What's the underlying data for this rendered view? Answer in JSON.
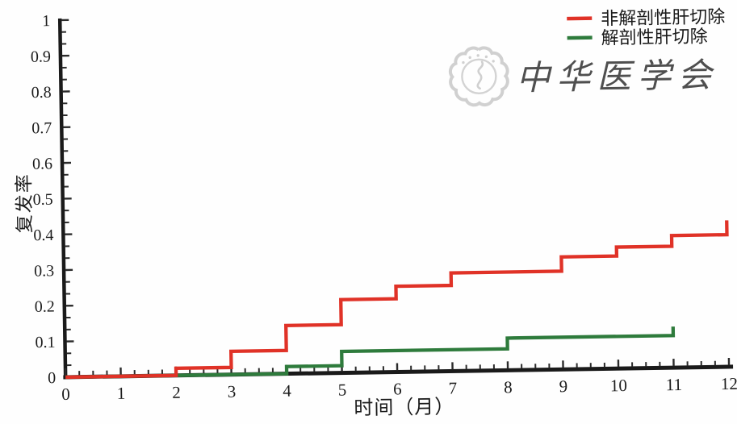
{
  "figure": {
    "background": "#fefefe",
    "axis_color": "#1a1a1a",
    "tick_color": "#2b2b2b"
  },
  "watermark": {
    "text": "中华医学会",
    "color": "#c6c6c6",
    "emblem": "cma-seal"
  },
  "chart_data": {
    "type": "line",
    "subtype": "step",
    "title": "",
    "xlabel": "时间（月）",
    "ylabel": "复发率",
    "xlim": [
      0,
      12
    ],
    "ylim": [
      0,
      1
    ],
    "xticks": [
      0,
      1,
      2,
      3,
      4,
      5,
      6,
      7,
      8,
      9,
      10,
      11,
      12
    ],
    "xticklabels": [
      "0",
      "1",
      "2",
      "3",
      "4",
      "5",
      "6",
      "7",
      "8",
      "9",
      "10",
      "11",
      "12"
    ],
    "yticks": [
      0,
      0.1,
      0.2,
      0.3,
      0.4,
      0.5,
      0.6,
      0.7,
      0.8,
      0.9,
      1
    ],
    "yticklabels": [
      "0",
      "0.1",
      "0.2",
      "0.3",
      "0.4",
      "0.5",
      "0.6",
      "0.7",
      "0.8",
      "0.9",
      "1"
    ],
    "x_minor_per_major": 3,
    "y_minor_per_major": 2,
    "grid": false,
    "legend_position": "top-right",
    "series": [
      {
        "name": "非解剖性肝切除",
        "color": "#e03227",
        "start": [
          0,
          0
        ],
        "end_t": 12,
        "steps": [
          [
            2,
            0.02
          ],
          [
            3,
            0.065
          ],
          [
            4,
            0.135
          ],
          [
            5,
            0.205
          ],
          [
            6,
            0.24
          ],
          [
            7,
            0.275
          ],
          [
            9,
            0.315
          ],
          [
            10,
            0.34
          ],
          [
            11,
            0.37
          ],
          [
            12,
            0.41
          ]
        ]
      },
      {
        "name": "解剖性肝切除",
        "color": "#2e7b3c",
        "start": [
          0,
          0
        ],
        "end_t": 11,
        "steps": [
          [
            4,
            0.02
          ],
          [
            5,
            0.06
          ],
          [
            8,
            0.09
          ],
          [
            11,
            0.115
          ]
        ]
      }
    ]
  }
}
